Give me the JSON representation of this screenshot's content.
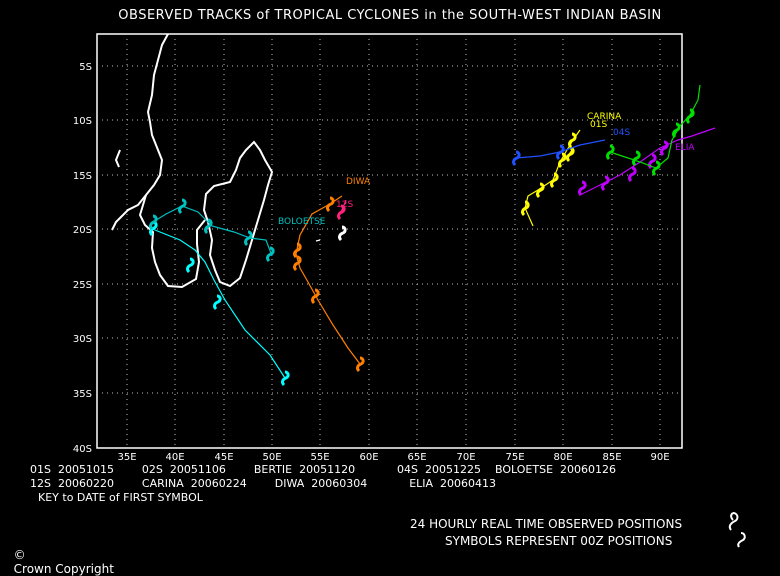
{
  "title": "OBSERVED TRACKS of TROPICAL CYCLONES in the SOUTH-WEST INDIAN BASIN",
  "axes": {
    "lat_labels": [
      "5S",
      "10S",
      "15S",
      "20S",
      "25S",
      "30S",
      "35S",
      "40S"
    ],
    "lon_labels": [
      "35E",
      "40E",
      "45E",
      "50E",
      "55E",
      "60E",
      "65E",
      "70E",
      "75E",
      "80E",
      "85E",
      "90E"
    ]
  },
  "storms": [
    {
      "name": "01S",
      "date": "20051015",
      "color": "#ffff00",
      "label": "01S"
    },
    {
      "name": "02S",
      "date": "20051106",
      "color": "#00ffff",
      "label": ""
    },
    {
      "name": "BERTIE",
      "date": "20051120",
      "color": "#ffffff",
      "label": ""
    },
    {
      "name": "04S",
      "date": "20051225",
      "color": "#2050ff",
      "label": "04S"
    },
    {
      "name": "BOLOETSE",
      "date": "20060126",
      "color": "#00c0c0",
      "label": "BOLOETSE"
    },
    {
      "name": "12S",
      "date": "20060220",
      "color": "#ff2080",
      "label": "12S"
    },
    {
      "name": "CARINA",
      "date": "20060224",
      "color": "#ffff00",
      "label": "CARINA"
    },
    {
      "name": "DIWA",
      "date": "20060304",
      "color": "#ff8000",
      "label": "DIWA"
    },
    {
      "name": "ELIA",
      "date": "20060413",
      "color": "#c000ff",
      "label": "ELIA"
    }
  ],
  "key_rows": [
    "01S  20051015        02S  20051106        BERTIE  20051120            04S  20051225    BOLOETSE  20060126",
    "12S  20060220        CARINA  20060224        DIWA  20060304            ELIA  20060413"
  ],
  "key_caption": "KEY to DATE of FIRST SYMBOL",
  "footer": {
    "copyright": "Crown Copyright",
    "line1": "24 HOURLY REAL TIME OBSERVED POSITIONS",
    "line2": "SYMBOLS REPRESENT 00Z POSITIONS"
  },
  "icon_names": [
    "cyclone-symbol-icon",
    "copyright-icon"
  ]
}
